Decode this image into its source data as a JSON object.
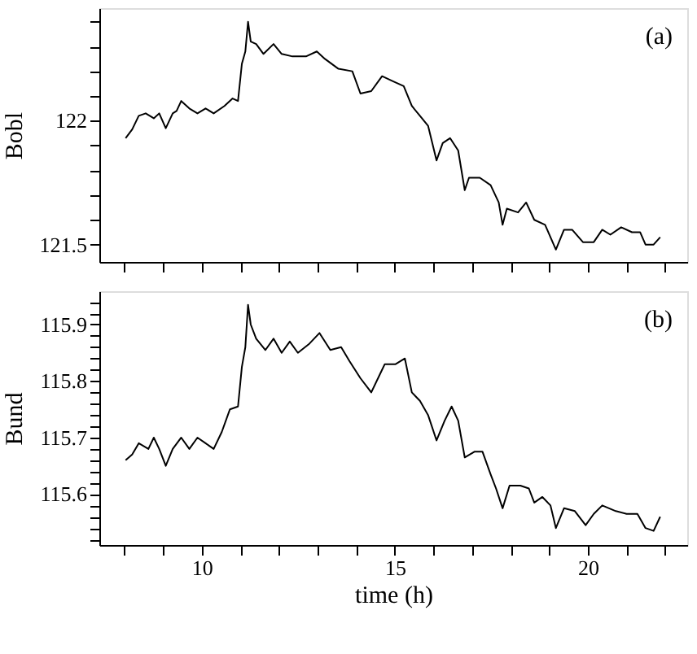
{
  "chart_data": [
    {
      "type": "line",
      "ylabel": "Bobl",
      "annotations": [
        "(a)"
      ],
      "tick_labels": "y",
      "grid": false,
      "marker": "none",
      "line_style": "solid",
      "xlim": [
        7.35,
        22.57
      ],
      "ylim": [
        121.43,
        122.455
      ],
      "xticks": [
        {
          "value": 8,
          "label": null
        },
        {
          "value": 9,
          "label": null
        },
        {
          "value": 10,
          "label": null
        },
        {
          "value": 11,
          "label": null
        },
        {
          "value": 12,
          "label": null
        },
        {
          "value": 13,
          "label": null
        },
        {
          "value": 14,
          "label": null
        },
        {
          "value": 15,
          "label": null
        },
        {
          "value": 16,
          "label": null
        },
        {
          "value": 17,
          "label": null
        },
        {
          "value": 18,
          "label": null
        },
        {
          "value": 19,
          "label": null
        },
        {
          "value": 20,
          "label": null
        },
        {
          "value": 21,
          "label": null
        },
        {
          "value": 22,
          "label": null
        }
      ],
      "yticks": [
        121.5,
        {
          "value": 121.6,
          "label": null
        },
        {
          "value": 121.7,
          "label": null
        },
        {
          "value": 121.8,
          "label": null
        },
        {
          "value": 121.9,
          "label": null
        },
        122,
        {
          "value": 122.1,
          "label": null
        },
        {
          "value": 122.2,
          "label": null
        },
        {
          "value": 122.3,
          "label": null
        },
        {
          "value": 122.4,
          "label": null
        }
      ],
      "series": [
        {
          "color": "#000000",
          "x": [
            8.03,
            8.2,
            8.37,
            8.55,
            8.76,
            8.9,
            9.07,
            9.25,
            9.35,
            9.47,
            9.68,
            9.89,
            10.1,
            10.31,
            10.59,
            10.8,
            10.94,
            11.04,
            11.13,
            11.2,
            11.27,
            11.41,
            11.6,
            11.86,
            12.07,
            12.35,
            12.7,
            12.98,
            13.19,
            13.54,
            13.9,
            14.11,
            14.39,
            14.67,
            14.95,
            15.23,
            15.44,
            15.65,
            15.86,
            16.08,
            16.24,
            16.43,
            16.64,
            16.81,
            16.92,
            17.2,
            17.48,
            17.69,
            17.79,
            17.9,
            18.19,
            18.4,
            18.61,
            18.89,
            19.17,
            19.38,
            19.59,
            19.87,
            20.15,
            20.37,
            20.58,
            20.86,
            21.14,
            21.35,
            21.49,
            21.7,
            21.87
          ],
          "values": [
            121.93,
            121.965,
            122.02,
            122.03,
            122.01,
            122.03,
            121.97,
            122.03,
            122.04,
            122.08,
            122.05,
            122.03,
            122.05,
            122.03,
            122.06,
            122.09,
            122.08,
            122.23,
            122.28,
            122.4,
            122.32,
            122.31,
            122.27,
            122.31,
            122.27,
            122.26,
            122.26,
            122.28,
            122.25,
            122.21,
            122.2,
            122.11,
            122.12,
            122.18,
            122.16,
            122.14,
            122.06,
            122.02,
            121.98,
            121.84,
            121.91,
            121.93,
            121.88,
            121.72,
            121.77,
            121.77,
            121.74,
            121.67,
            121.58,
            121.645,
            121.63,
            121.67,
            121.6,
            121.58,
            121.48,
            121.56,
            121.56,
            121.51,
            121.51,
            121.56,
            121.54,
            121.57,
            121.55,
            121.55,
            121.5,
            121.5,
            121.53
          ]
        }
      ]
    },
    {
      "type": "line",
      "ylabel": "Bund",
      "xlabel": "time (h)",
      "annotations": [
        "(b)"
      ],
      "grid": false,
      "marker": "none",
      "line_style": "solid",
      "xlim": [
        7.35,
        22.57
      ],
      "ylim": [
        115.51,
        115.959
      ],
      "xticks": [
        {
          "value": 8,
          "label": null
        },
        {
          "value": 9,
          "label": null
        },
        10,
        {
          "value": 11,
          "label": null
        },
        {
          "value": 12,
          "label": null
        },
        {
          "value": 13,
          "label": null
        },
        {
          "value": 14,
          "label": null
        },
        15,
        {
          "value": 16,
          "label": null
        },
        {
          "value": 17,
          "label": null
        },
        {
          "value": 18,
          "label": null
        },
        {
          "value": 19,
          "label": null
        },
        20,
        {
          "value": 21,
          "label": null
        },
        {
          "value": 22,
          "label": null
        }
      ],
      "yticks": [
        {
          "value": 115.52,
          "label": null
        },
        {
          "value": 115.54,
          "label": null
        },
        {
          "value": 115.56,
          "label": null
        },
        {
          "value": 115.58,
          "label": null
        },
        115.6,
        {
          "value": 115.62,
          "label": null
        },
        {
          "value": 115.64,
          "label": null
        },
        {
          "value": 115.66,
          "label": null
        },
        {
          "value": 115.68,
          "label": null
        },
        115.7,
        {
          "value": 115.72,
          "label": null
        },
        {
          "value": 115.74,
          "label": null
        },
        {
          "value": 115.76,
          "label": null
        },
        {
          "value": 115.78,
          "label": null
        },
        115.8,
        {
          "value": 115.82,
          "label": null
        },
        {
          "value": 115.84,
          "label": null
        },
        {
          "value": 115.86,
          "label": null
        },
        {
          "value": 115.88,
          "label": null
        },
        115.9,
        {
          "value": 115.92,
          "label": null
        },
        {
          "value": 115.94,
          "label": null
        }
      ],
      "series": [
        {
          "color": "#000000",
          "x": [
            8.03,
            8.2,
            8.37,
            8.62,
            8.76,
            8.9,
            9.07,
            9.25,
            9.47,
            9.68,
            9.89,
            10.1,
            10.31,
            10.52,
            10.73,
            10.94,
            11.04,
            11.13,
            11.2,
            11.27,
            11.41,
            11.65,
            11.86,
            12.07,
            12.28,
            12.49,
            12.77,
            13.05,
            13.33,
            13.61,
            13.83,
            14.11,
            14.39,
            14.6,
            14.74,
            15.02,
            15.26,
            15.44,
            15.65,
            15.86,
            16.08,
            16.29,
            16.47,
            16.64,
            16.81,
            17.06,
            17.27,
            17.48,
            17.62,
            17.79,
            17.97,
            18.25,
            18.47,
            18.61,
            18.82,
            19.03,
            19.17,
            19.38,
            19.66,
            19.94,
            20.15,
            20.37,
            20.72,
            21.0,
            21.28,
            21.49,
            21.7,
            21.87
          ],
          "values": [
            115.66,
            115.67,
            115.69,
            115.68,
            115.7,
            115.68,
            115.65,
            115.68,
            115.7,
            115.68,
            115.7,
            115.69,
            115.68,
            115.71,
            115.75,
            115.755,
            115.825,
            115.86,
            115.935,
            115.9,
            115.875,
            115.855,
            115.875,
            115.85,
            115.87,
            115.85,
            115.865,
            115.885,
            115.855,
            115.86,
            115.835,
            115.805,
            115.78,
            115.81,
            115.83,
            115.83,
            115.84,
            115.78,
            115.765,
            115.74,
            115.695,
            115.73,
            115.755,
            115.73,
            115.665,
            115.675,
            115.675,
            115.635,
            115.61,
            115.575,
            115.615,
            115.615,
            115.61,
            115.585,
            115.595,
            115.58,
            115.54,
            115.575,
            115.57,
            115.545,
            115.565,
            115.58,
            115.57,
            115.565,
            115.565,
            115.54,
            115.535,
            115.56
          ]
        }
      ]
    }
  ]
}
